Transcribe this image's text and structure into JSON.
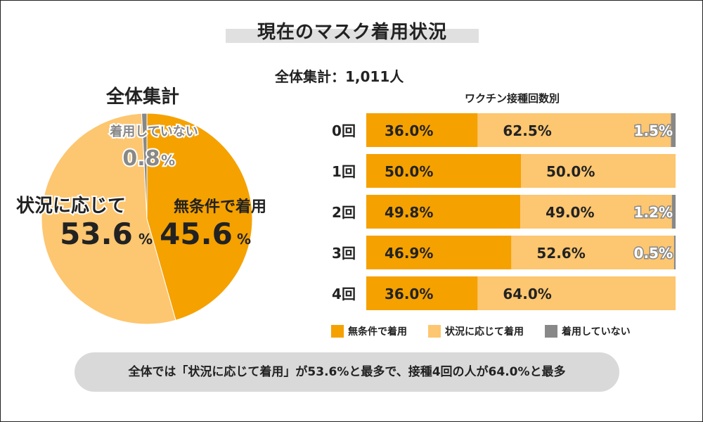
{
  "header": {
    "title": "現在のマスク着用状況",
    "total_label": "全体集計：1,011人"
  },
  "colors": {
    "unconditional": "#f5a100",
    "depending": "#fdc670",
    "not_wearing": "#888888"
  },
  "chart_data": [
    {
      "type": "pie",
      "title": "全体集計",
      "slices": [
        {
          "name": "無条件で着用",
          "value": 45.6,
          "label": "45.6",
          "unit": "%"
        },
        {
          "name": "状況に応じて",
          "value": 53.6,
          "label": "53.6",
          "unit": "%"
        },
        {
          "name": "着用していない",
          "value": 0.8,
          "label": "0.8",
          "unit": "%"
        }
      ]
    },
    {
      "type": "bar",
      "orientation": "horizontal",
      "stacked": true,
      "title": "ワクチン接種回数別",
      "categories": [
        "0回",
        "1回",
        "2回",
        "3回",
        "4回"
      ],
      "series": [
        {
          "name": "無条件で着用",
          "values": [
            36.0,
            50.0,
            49.8,
            46.9,
            36.0
          ],
          "labels": [
            "36.0%",
            "50.0%",
            "49.8%",
            "46.9%",
            "36.0%"
          ]
        },
        {
          "name": "状況に応じて着用",
          "values": [
            62.5,
            50.0,
            49.0,
            52.6,
            64.0
          ],
          "labels": [
            "62.5%",
            "50.0%",
            "49.0%",
            "52.6%",
            "64.0%"
          ]
        },
        {
          "name": "着用していない",
          "values": [
            1.5,
            0.0,
            1.2,
            0.5,
            0.0
          ],
          "labels": [
            "1.5%",
            "",
            "1.2%",
            "0.5%",
            ""
          ]
        }
      ],
      "legend": [
        "無条件で着用",
        "状況に応じて着用",
        "着用していない"
      ]
    }
  ],
  "summary": "全体では「状況に応じて着用」が53.6%と最多で、接種4回の人が64.0%と最多"
}
